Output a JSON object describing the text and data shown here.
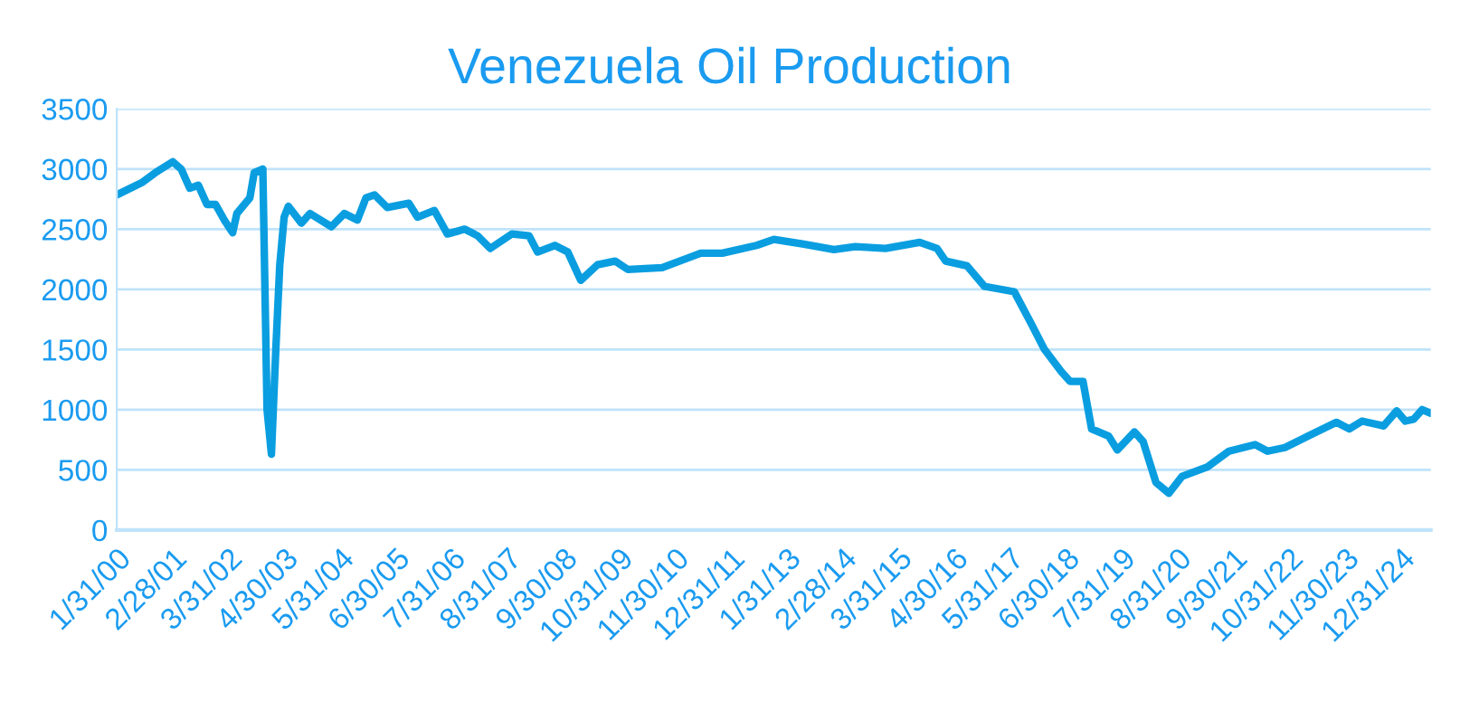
{
  "chart_data": {
    "type": "line",
    "title": "Venezuela Oil Production",
    "x": [
      "2000-01",
      "2000-07",
      "2000-10",
      "2001-02",
      "2001-04",
      "2001-06",
      "2001-08",
      "2001-10",
      "2001-12",
      "2002-02",
      "2002-04",
      "2002-05",
      "2002-08",
      "2002-09",
      "2002-11",
      "2002-12",
      "2003-01",
      "2003-02",
      "2003-03",
      "2003-04",
      "2003-05",
      "2003-08",
      "2003-10",
      "2004-03",
      "2004-06",
      "2004-09",
      "2004-11",
      "2005-01",
      "2005-04",
      "2005-09",
      "2005-11",
      "2006-03",
      "2006-06",
      "2006-10",
      "2007-01",
      "2007-04",
      "2007-09",
      "2008-01",
      "2008-03",
      "2008-07",
      "2008-10",
      "2009-01",
      "2009-05",
      "2009-09",
      "2009-12",
      "2010-08",
      "2011-05",
      "2011-10",
      "2012-06",
      "2012-10",
      "2013-05",
      "2013-12",
      "2014-05",
      "2014-12",
      "2015-08",
      "2015-12",
      "2016-02",
      "2016-07",
      "2016-11",
      "2017-06",
      "2017-10",
      "2018-01",
      "2018-05",
      "2018-07",
      "2018-10",
      "2018-12",
      "2019-04",
      "2019-06",
      "2019-10",
      "2019-12",
      "2020-03",
      "2020-06",
      "2020-09",
      "2021-03",
      "2021-08",
      "2022-02",
      "2022-05",
      "2022-09",
      "2023-03",
      "2023-09",
      "2023-12",
      "2024-03",
      "2024-08",
      "2024-11",
      "2025-01",
      "2025-03",
      "2025-05",
      "2025-07"
    ],
    "series": [
      {
        "color": "#0a9ee0",
        "values": [
          2785,
          2890,
          2970,
          3060,
          3000,
          2840,
          2865,
          2705,
          2705,
          2575,
          2470,
          2630,
          2760,
          2970,
          3000,
          1000,
          630,
          1500,
          2200,
          2600,
          2690,
          2550,
          2630,
          2520,
          2630,
          2575,
          2760,
          2785,
          2680,
          2715,
          2600,
          2655,
          2460,
          2500,
          2445,
          2340,
          2460,
          2445,
          2310,
          2365,
          2310,
          2075,
          2205,
          2235,
          2165,
          2180,
          2300,
          2300,
          2365,
          2415,
          2375,
          2330,
          2355,
          2340,
          2390,
          2340,
          2235,
          2195,
          2025,
          1980,
          1710,
          1500,
          1315,
          1235,
          1235,
          840,
          780,
          665,
          815,
          735,
          395,
          305,
          445,
          525,
          655,
          710,
          655,
          685,
          790,
          895,
          840,
          905,
          865,
          990,
          905,
          920,
          1000,
          970
        ]
      }
    ],
    "xlim": [
      "2000-01",
      "2025-07"
    ],
    "xticks": [
      {
        "value": "2000-01",
        "label": "1/31/00"
      },
      {
        "value": "2001-02",
        "label": "2/28/01"
      },
      {
        "value": "2002-03",
        "label": "3/31/02"
      },
      {
        "value": "2003-04",
        "label": "4/30/03"
      },
      {
        "value": "2004-05",
        "label": "5/31/04"
      },
      {
        "value": "2005-06",
        "label": "6/30/05"
      },
      {
        "value": "2006-07",
        "label": "7/31/06"
      },
      {
        "value": "2007-08",
        "label": "8/31/07"
      },
      {
        "value": "2008-09",
        "label": "9/30/08"
      },
      {
        "value": "2009-10",
        "label": "10/31/09"
      },
      {
        "value": "2010-11",
        "label": "11/30/10"
      },
      {
        "value": "2011-12",
        "label": "12/31/11"
      },
      {
        "value": "2013-01",
        "label": "1/31/13"
      },
      {
        "value": "2014-02",
        "label": "2/28/14"
      },
      {
        "value": "2015-03",
        "label": "3/31/15"
      },
      {
        "value": "2016-04",
        "label": "4/30/16"
      },
      {
        "value": "2017-05",
        "label": "5/31/17"
      },
      {
        "value": "2018-06",
        "label": "6/30/18"
      },
      {
        "value": "2019-07",
        "label": "7/31/19"
      },
      {
        "value": "2020-08",
        "label": "8/31/20"
      },
      {
        "value": "2021-09",
        "label": "9/30/21"
      },
      {
        "value": "2022-10",
        "label": "10/31/22"
      },
      {
        "value": "2023-11",
        "label": "11/30/23"
      },
      {
        "value": "2024-12",
        "label": "12/31/24"
      }
    ],
    "ylim": [
      0,
      3500
    ],
    "yticks": [
      0,
      500,
      1000,
      1500,
      2000,
      2500,
      3000,
      3500
    ],
    "grid": "y",
    "legend": false,
    "marker": "none",
    "line_style": "solid"
  }
}
